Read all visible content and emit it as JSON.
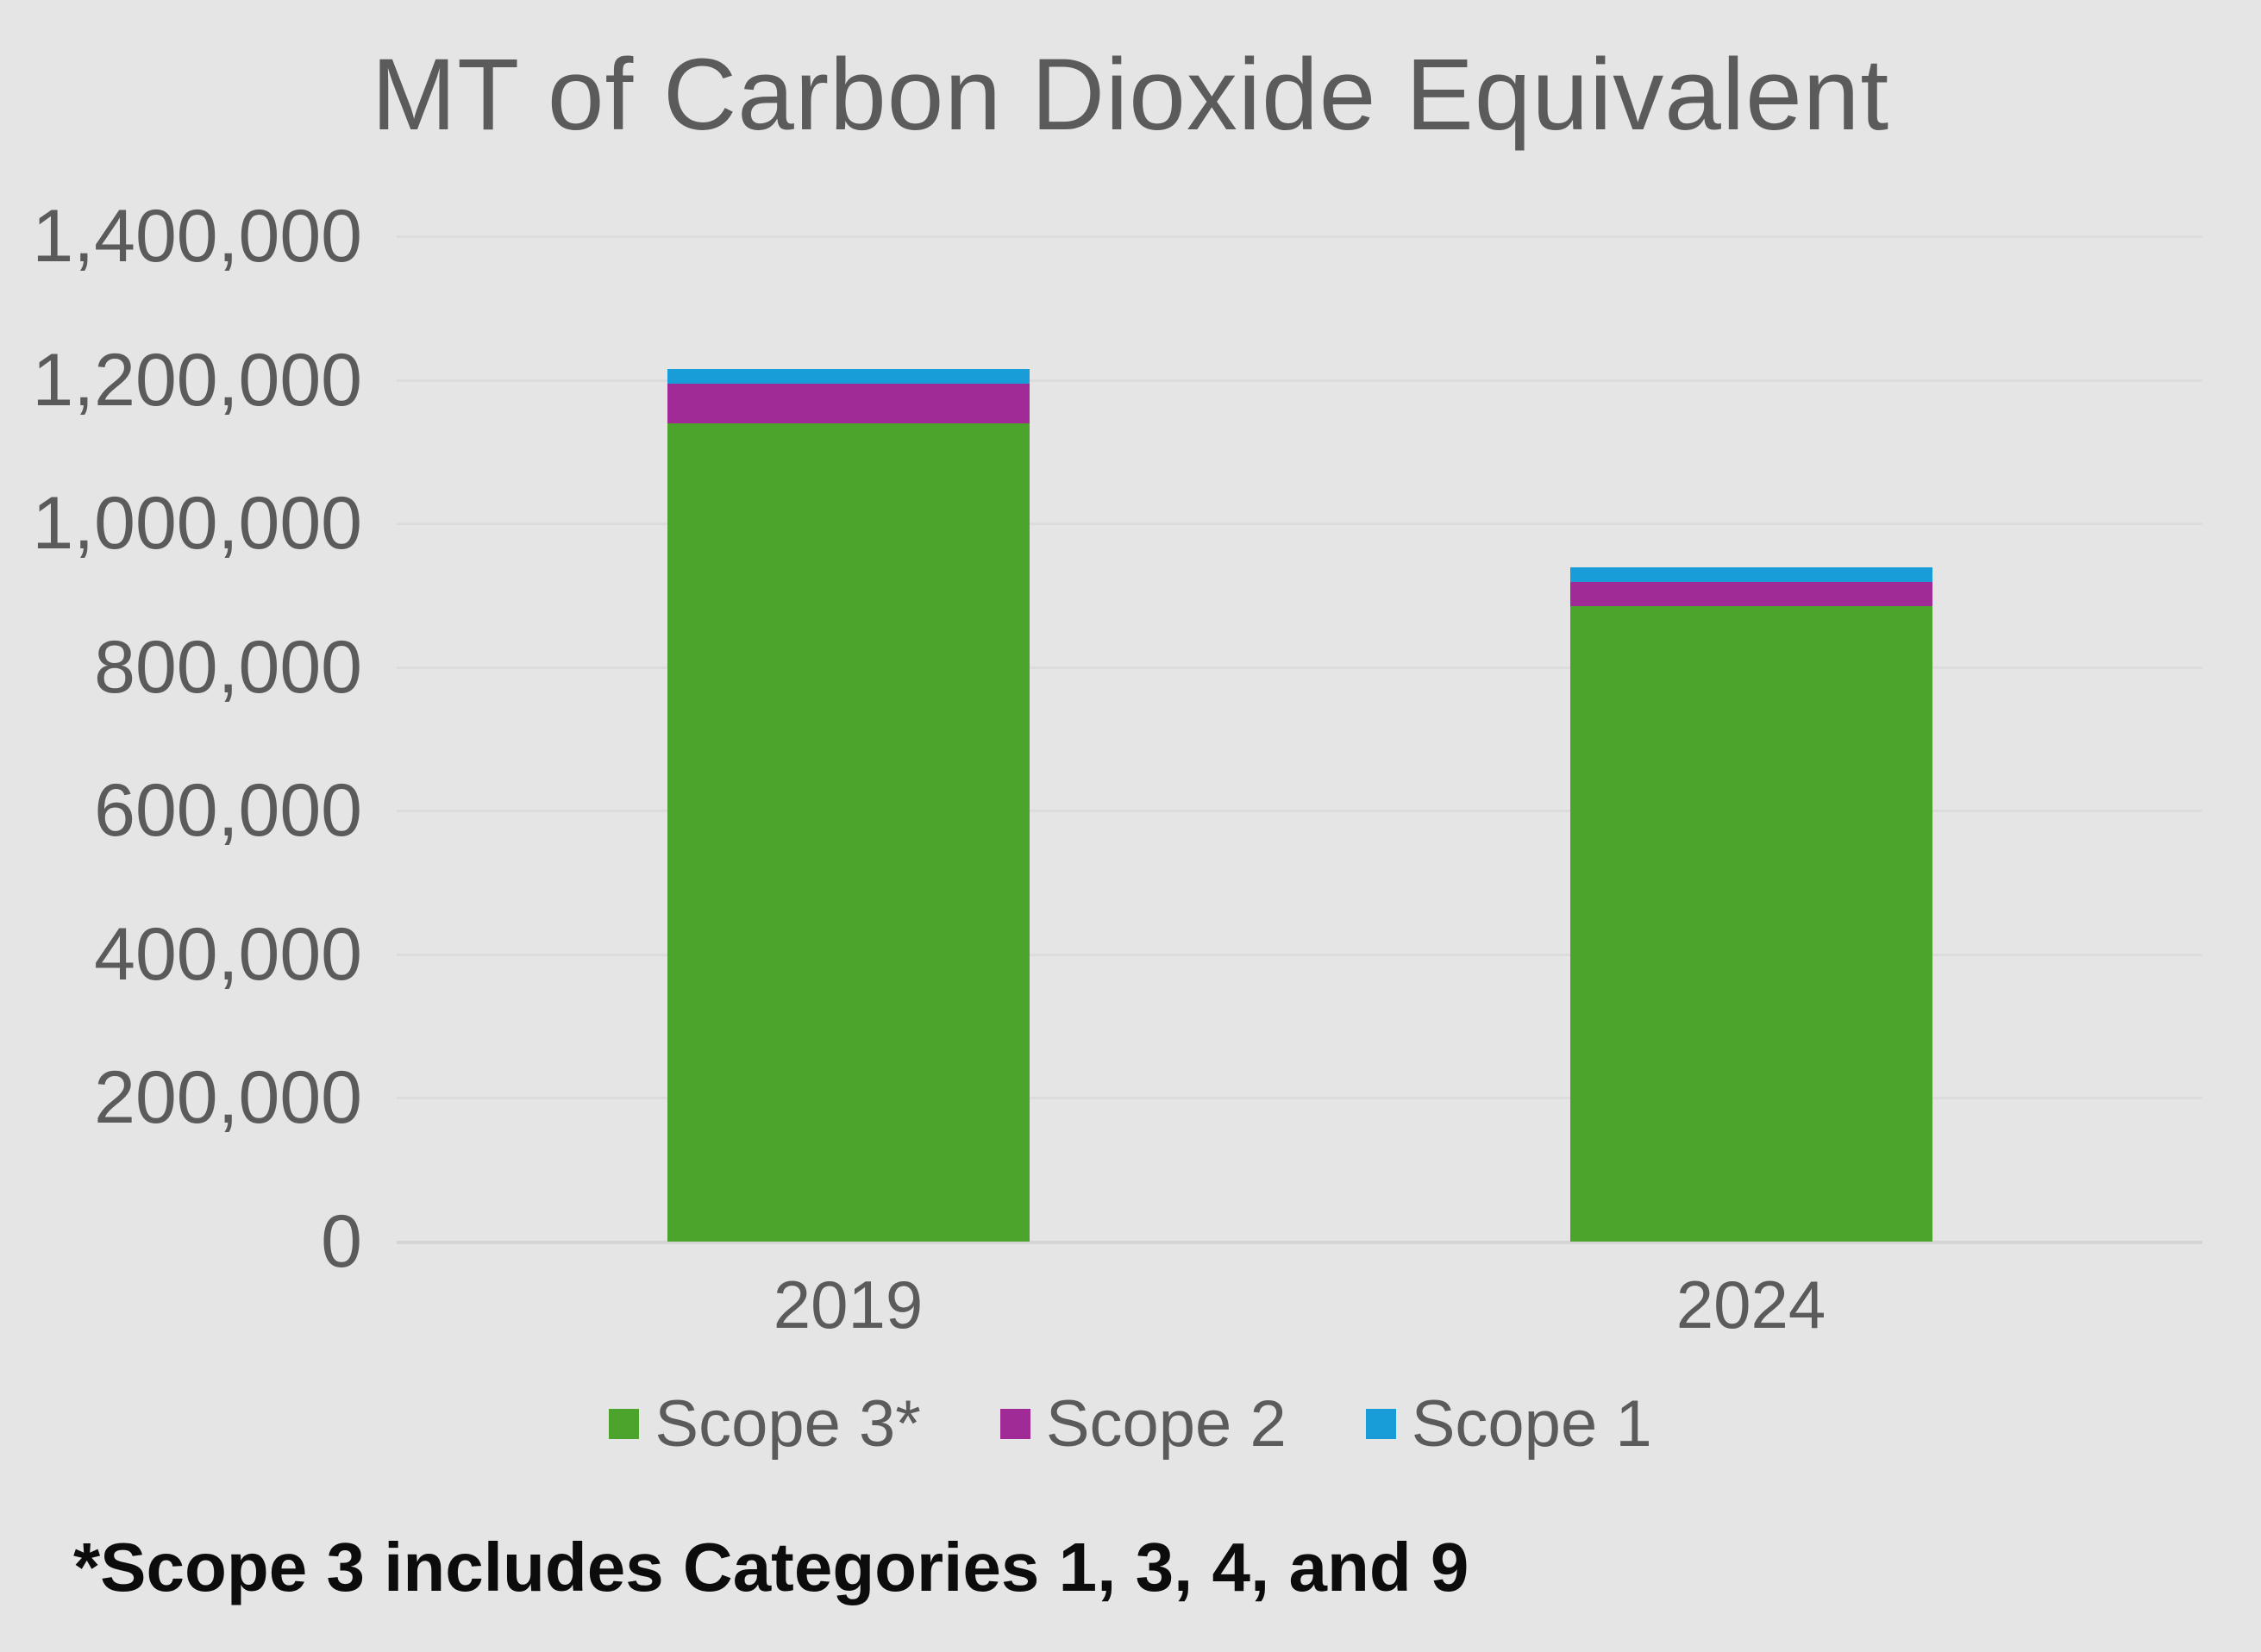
{
  "page": {
    "background_color": "#E6E5E5"
  },
  "chart": {
    "title": "MT of Carbon Dioxide Equivalent",
    "footnote": "*Scope 3 includes Categories 1, 3, 4, and 9",
    "title_color": "#5B5B5B",
    "axis_text_color": "#5B5B5B",
    "footnote_color": "#0C0C0C",
    "gridline_color": "#DDDCDC",
    "axis_line_color": "#D5D4D4"
  },
  "chart_data": {
    "type": "bar",
    "stacked": true,
    "title": "MT of Carbon Dioxide Equivalent",
    "xlabel": "",
    "ylabel": "",
    "categories": [
      "2019",
      "2024"
    ],
    "series": [
      {
        "name": "Scope 3*",
        "color": "#4CA42D",
        "values": [
          1140000,
          885000
        ]
      },
      {
        "name": "Scope 2",
        "color": "#A02B97",
        "values": [
          55000,
          34000
        ]
      },
      {
        "name": "Scope 1",
        "color": "#189DD8",
        "values": [
          20000,
          20000
        ]
      }
    ],
    "ylim": [
      0,
      1400000
    ],
    "yticks": [
      {
        "value": 0,
        "label": "0"
      },
      {
        "value": 200000,
        "label": "200,000"
      },
      {
        "value": 400000,
        "label": "400,000"
      },
      {
        "value": 600000,
        "label": "600,000"
      },
      {
        "value": 800000,
        "label": "800,000"
      },
      {
        "value": 1000000,
        "label": "1,000,000"
      },
      {
        "value": 1200000,
        "label": "1,200,000"
      },
      {
        "value": 1400000,
        "label": "1,400,000"
      }
    ],
    "grid": true,
    "legend_position": "bottom",
    "legend": [
      "Scope 3*",
      "Scope 2",
      "Scope 1"
    ],
    "footnote": "*Scope 3 includes Categories 1, 3, 4, and 9"
  }
}
